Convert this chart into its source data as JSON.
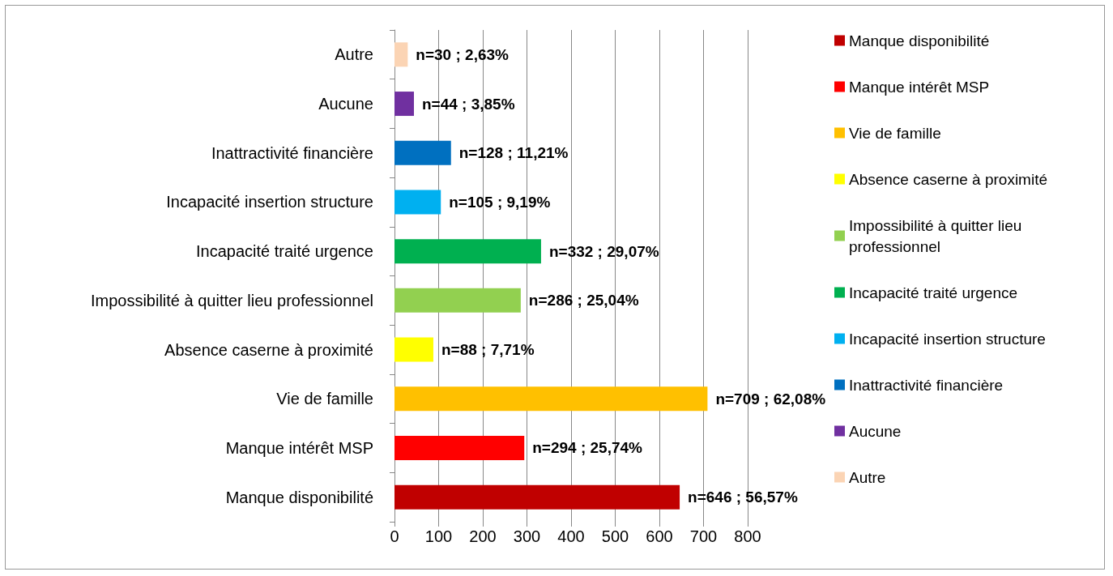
{
  "chart_data": {
    "type": "bar",
    "orientation": "horizontal",
    "stacked": true,
    "categories": [
      "Autre",
      "Aucune",
      "Inattractivité financière",
      "Incapacité insertion structure",
      "Incapacité traité urgence",
      "Impossibilité à quitter lieu professionnel",
      "Absence caserne à proximité",
      "Vie de famille",
      "Manque intérêt MSP",
      "Manque disponibilité"
    ],
    "series": [
      {
        "name": "Manque disponibilité",
        "color": "#c00000",
        "values": [
          null,
          null,
          null,
          null,
          null,
          null,
          null,
          null,
          null,
          646
        ],
        "value_labels": [
          null,
          null,
          null,
          null,
          null,
          null,
          null,
          null,
          null,
          "n=646 ; 56,57%"
        ]
      },
      {
        "name": "Manque intérêt MSP",
        "color": "#ff0000",
        "values": [
          null,
          null,
          null,
          null,
          null,
          null,
          null,
          null,
          294,
          null
        ],
        "value_labels": [
          null,
          null,
          null,
          null,
          null,
          null,
          null,
          null,
          "n=294 ; 25,74%",
          null
        ]
      },
      {
        "name": "Vie de famille",
        "color": "#ffc000",
        "values": [
          null,
          null,
          null,
          null,
          null,
          null,
          null,
          709,
          null,
          null
        ],
        "value_labels": [
          null,
          null,
          null,
          null,
          null,
          null,
          null,
          "n=709 ; 62,08%",
          null,
          null
        ]
      },
      {
        "name": "Absence caserne à proximité",
        "color": "#ffff00",
        "values": [
          null,
          null,
          null,
          null,
          null,
          null,
          88,
          null,
          null,
          null
        ],
        "value_labels": [
          null,
          null,
          null,
          null,
          null,
          null,
          "n=88 ; 7,71%",
          null,
          null,
          null
        ]
      },
      {
        "name": "Impossibilité à quitter lieu professionnel",
        "color": "#92d050",
        "values": [
          null,
          null,
          null,
          null,
          null,
          286,
          null,
          null,
          null,
          null
        ],
        "value_labels": [
          null,
          null,
          null,
          null,
          null,
          "n=286 ; 25,04%",
          null,
          null,
          null,
          null
        ]
      },
      {
        "name": "Incapacité traité urgence",
        "color": "#00b050",
        "values": [
          null,
          null,
          null,
          null,
          332,
          null,
          null,
          null,
          null,
          null
        ],
        "value_labels": [
          null,
          null,
          null,
          null,
          "n=332 ; 29,07%",
          null,
          null,
          null,
          null,
          null
        ]
      },
      {
        "name": "Incapacité insertion structure",
        "color": "#00b0f0",
        "values": [
          null,
          null,
          null,
          105,
          null,
          null,
          null,
          null,
          null,
          null
        ],
        "value_labels": [
          null,
          null,
          null,
          "n=105 ; 9,19%",
          null,
          null,
          null,
          null,
          null,
          null
        ]
      },
      {
        "name": "Inattractivité financière",
        "color": "#0070c0",
        "values": [
          null,
          null,
          128,
          null,
          null,
          null,
          null,
          null,
          null,
          null
        ],
        "value_labels": [
          null,
          null,
          "n=128 ; 11,21%",
          null,
          null,
          null,
          null,
          null,
          null,
          null
        ]
      },
      {
        "name": "Aucune",
        "color": "#7030a0",
        "values": [
          null,
          44,
          null,
          null,
          null,
          null,
          null,
          null,
          null,
          null
        ],
        "value_labels": [
          null,
          "n=44 ; 3,85%",
          null,
          null,
          null,
          null,
          null,
          null,
          null,
          null
        ]
      },
      {
        "name": "Autre",
        "color": "#fbd4b4",
        "values": [
          30,
          null,
          null,
          null,
          null,
          null,
          null,
          null,
          null,
          null
        ],
        "value_labels": [
          "n=30 ; 2,63%",
          null,
          null,
          null,
          null,
          null,
          null,
          null,
          null,
          null
        ]
      }
    ],
    "xlim": [
      0,
      800
    ],
    "xticks": [
      0,
      100,
      200,
      300,
      400,
      500,
      600,
      700,
      800
    ],
    "grid": "x",
    "legend": "right"
  }
}
